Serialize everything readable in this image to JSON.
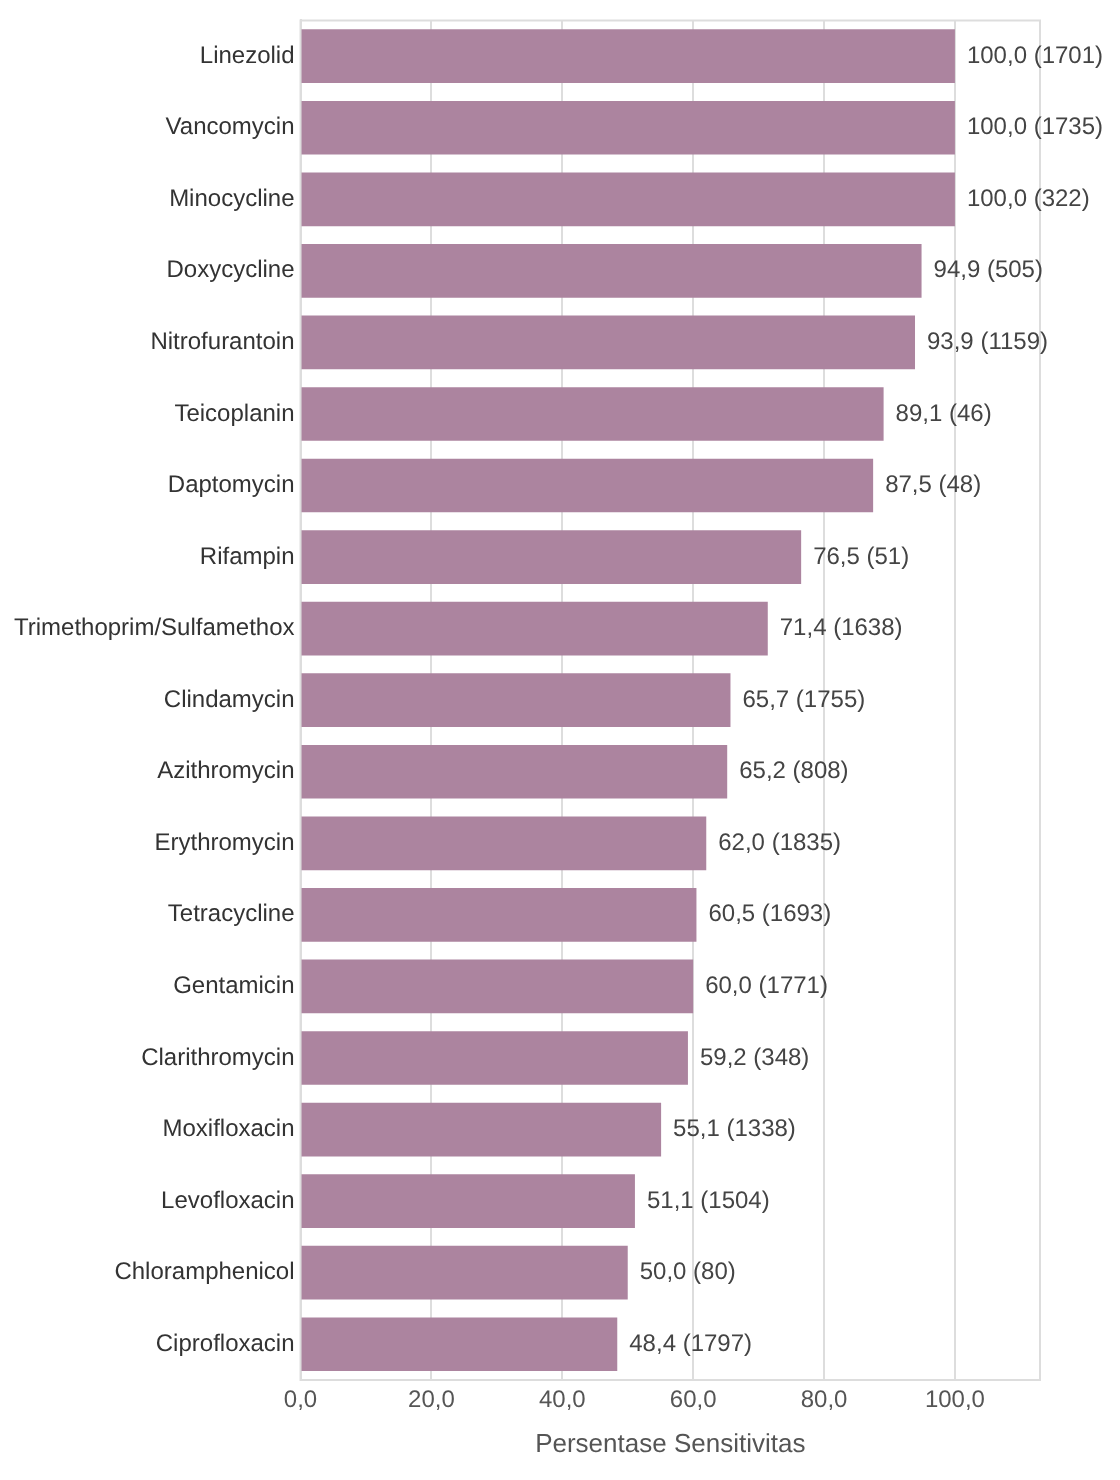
{
  "chart_data": {
    "type": "bar",
    "orientation": "horizontal",
    "xlabel": "Persentase Sensitivitas",
    "categories": [
      "Linezolid",
      "Vancomycin",
      "Minocycline",
      "Doxycycline",
      "Nitrofurantoin",
      "Teicoplanin",
      "Daptomycin",
      "Rifampin",
      "Trimethoprim/Sulfamethox",
      "Clindamycin",
      "Azithromycin",
      "Erythromycin",
      "Tetracycline",
      "Gentamicin",
      "Clarithromycin",
      "Moxifloxacin",
      "Levofloxacin",
      "Chloramphenicol",
      "Ciprofloxacin"
    ],
    "values": [
      100.0,
      100.0,
      100.0,
      94.9,
      93.9,
      89.1,
      87.5,
      76.5,
      71.4,
      65.7,
      65.2,
      62.0,
      60.5,
      60.0,
      59.2,
      55.1,
      51.1,
      50.0,
      48.4
    ],
    "value_labels": [
      "100,0 (1701)",
      "100,0 (1735)",
      "100,0 (322)",
      "94,9 (505)",
      "93,9 (1159)",
      "89,1 (46)",
      "87,5 (48)",
      "76,5 (51)",
      "71,4 (1638)",
      "65,7 (1755)",
      "65,2 (808)",
      "62,0 (1835)",
      "60,5 (1693)",
      "60,0 (1771)",
      "59,2 (348)",
      "55,1 (1338)",
      "51,1 (1504)",
      "50,0 (80)",
      "48,4 (1797)"
    ],
    "color": "#ac849f",
    "xlim": [
      0,
      113
    ],
    "xticks": [
      {
        "value": 0,
        "label": "0,0"
      },
      {
        "value": 20,
        "label": "20,0"
      },
      {
        "value": 40,
        "label": "40,0"
      },
      {
        "value": 60,
        "label": "60,0"
      },
      {
        "value": 80,
        "label": "80,0"
      },
      {
        "value": 100,
        "label": "100,0"
      }
    ],
    "grid": "x",
    "legend": false
  }
}
